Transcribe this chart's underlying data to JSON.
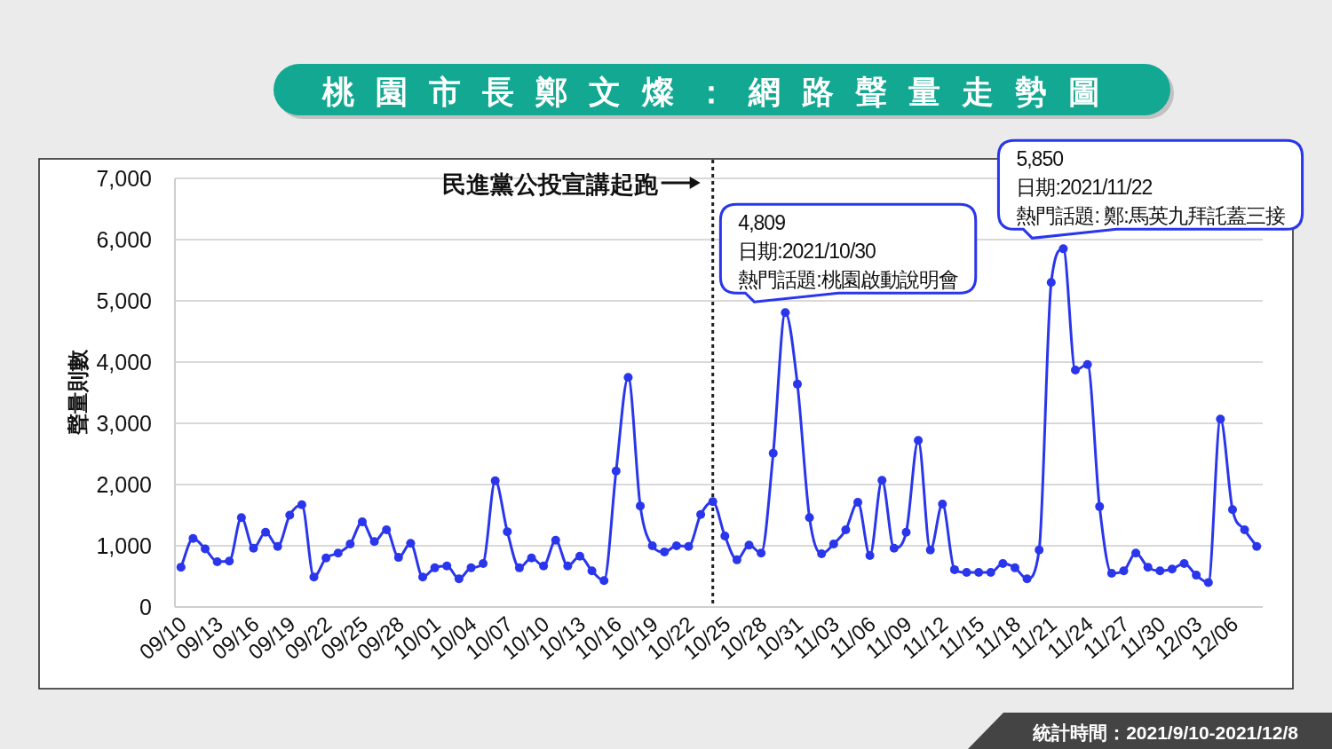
{
  "chart_data": {
    "type": "line",
    "title": "桃園市長鄭文燦：網路聲量走勢圖",
    "ylabel": "聲量則數",
    "x": [
      "2021-09-10",
      "2021-09-11",
      "2021-09-12",
      "2021-09-13",
      "2021-09-14",
      "2021-09-15",
      "2021-09-16",
      "2021-09-17",
      "2021-09-18",
      "2021-09-19",
      "2021-09-20",
      "2021-09-21",
      "2021-09-22",
      "2021-09-23",
      "2021-09-24",
      "2021-09-25",
      "2021-09-26",
      "2021-09-27",
      "2021-09-28",
      "2021-09-29",
      "2021-09-30",
      "2021-10-01",
      "2021-10-02",
      "2021-10-03",
      "2021-10-04",
      "2021-10-05",
      "2021-10-06",
      "2021-10-07",
      "2021-10-08",
      "2021-10-09",
      "2021-10-10",
      "2021-10-11",
      "2021-10-12",
      "2021-10-13",
      "2021-10-14",
      "2021-10-15",
      "2021-10-16",
      "2021-10-17",
      "2021-10-18",
      "2021-10-19",
      "2021-10-20",
      "2021-10-21",
      "2021-10-22",
      "2021-10-23",
      "2021-10-24",
      "2021-10-25",
      "2021-10-26",
      "2021-10-27",
      "2021-10-28",
      "2021-10-29",
      "2021-10-30",
      "2021-10-31",
      "2021-11-01",
      "2021-11-02",
      "2021-11-03",
      "2021-11-04",
      "2021-11-05",
      "2021-11-06",
      "2021-11-07",
      "2021-11-08",
      "2021-11-09",
      "2021-11-10",
      "2021-11-11",
      "2021-11-12",
      "2021-11-13",
      "2021-11-14",
      "2021-11-15",
      "2021-11-16",
      "2021-11-17",
      "2021-11-18",
      "2021-11-19",
      "2021-11-20",
      "2021-11-21",
      "2021-11-22",
      "2021-11-23",
      "2021-11-24",
      "2021-11-25",
      "2021-11-26",
      "2021-11-27",
      "2021-11-28",
      "2021-11-29",
      "2021-11-30",
      "2021-12-01",
      "2021-12-02",
      "2021-12-03",
      "2021-12-04",
      "2021-12-05",
      "2021-12-06",
      "2021-12-07",
      "2021-12-08"
    ],
    "series": [
      {
        "color": "#2a36ec",
        "values": [
          650,
          1120,
          950,
          740,
          750,
          1460,
          960,
          1220,
          990,
          1500,
          1670,
          490,
          800,
          880,
          1030,
          1390,
          1070,
          1260,
          810,
          1040,
          490,
          640,
          670,
          460,
          640,
          710,
          2060,
          1230,
          640,
          800,
          670,
          1090,
          670,
          830,
          590,
          430,
          2220,
          3750,
          1650,
          1000,
          900,
          1000,
          990,
          1510,
          1720,
          1160,
          770,
          1010,
          880,
          2510,
          4809,
          3640,
          1460,
          870,
          1030,
          1260,
          1710,
          840,
          2070,
          960,
          1220,
          2720,
          930,
          1680,
          610,
          565,
          565,
          565,
          710,
          640,
          460,
          930,
          5300,
          5850,
          3870,
          3960,
          1640,
          550,
          590,
          880,
          650,
          590,
          620,
          710,
          520,
          400,
          3070,
          1590,
          1260,
          990
        ]
      }
    ],
    "marker": "circle",
    "xlim": [
      "2021-09-09T12:00",
      "2021-12-08T12:00"
    ],
    "xticks": [
      {
        "value": "2021-09-10",
        "label": "09/10"
      },
      {
        "value": "2021-09-13",
        "label": "09/13"
      },
      {
        "value": "2021-09-16",
        "label": "09/16"
      },
      {
        "value": "2021-09-19",
        "label": "09/19"
      },
      {
        "value": "2021-09-22",
        "label": "09/22"
      },
      {
        "value": "2021-09-25",
        "label": "09/25"
      },
      {
        "value": "2021-09-28",
        "label": "09/28"
      },
      {
        "value": "2021-10-01",
        "label": "10/01"
      },
      {
        "value": "2021-10-04",
        "label": "10/04"
      },
      {
        "value": "2021-10-07",
        "label": "10/07"
      },
      {
        "value": "2021-10-10",
        "label": "10/10"
      },
      {
        "value": "2021-10-13",
        "label": "10/13"
      },
      {
        "value": "2021-10-16",
        "label": "10/16"
      },
      {
        "value": "2021-10-19",
        "label": "10/19"
      },
      {
        "value": "2021-10-22",
        "label": "10/22"
      },
      {
        "value": "2021-10-25",
        "label": "10/25"
      },
      {
        "value": "2021-10-28",
        "label": "10/28"
      },
      {
        "value": "2021-10-31",
        "label": "10/31"
      },
      {
        "value": "2021-11-03",
        "label": "11/03"
      },
      {
        "value": "2021-11-06",
        "label": "11/06"
      },
      {
        "value": "2021-11-09",
        "label": "11/09"
      },
      {
        "value": "2021-11-12",
        "label": "11/12"
      },
      {
        "value": "2021-11-15",
        "label": "11/15"
      },
      {
        "value": "2021-11-18",
        "label": "11/18"
      },
      {
        "value": "2021-11-21",
        "label": "11/21"
      },
      {
        "value": "2021-11-24",
        "label": "11/24"
      },
      {
        "value": "2021-11-27",
        "label": "11/27"
      },
      {
        "value": "2021-11-30",
        "label": "11/30"
      },
      {
        "value": "2021-12-03",
        "label": "12/03"
      },
      {
        "value": "2021-12-06",
        "label": "12/06"
      }
    ],
    "ylim": [
      0,
      7000
    ],
    "yticks": [
      0,
      {
        "value": 1000,
        "label": "1,000"
      },
      {
        "value": 2000,
        "label": "2,000"
      },
      {
        "value": 3000,
        "label": "3,000"
      },
      {
        "value": 4000,
        "label": "4,000"
      },
      {
        "value": 5000,
        "label": "5,000"
      },
      {
        "value": 6000,
        "label": "6,000"
      },
      {
        "value": 7000,
        "label": "7,000"
      }
    ],
    "grid": "y",
    "ref_lines": [
      {
        "axis": "x",
        "value": "2021-10-24",
        "label": "民進黨公投宣講起跑",
        "color": "#222222",
        "line_style": "dotted"
      }
    ],
    "annotations": [
      {
        "text": "4,809\n日期:2021/10/30\n熱門話題:桃園啟動說明會",
        "x": "2021-10-30",
        "y": 4809
      },
      {
        "text": "5,850\n日期:2021/11/22\n熱門話題: 鄭:馬英九拜託蓋三接",
        "x": "2021-11-22",
        "y": 5850
      },
      "統計時間：2021/9/10-2021/12/8"
    ]
  }
}
